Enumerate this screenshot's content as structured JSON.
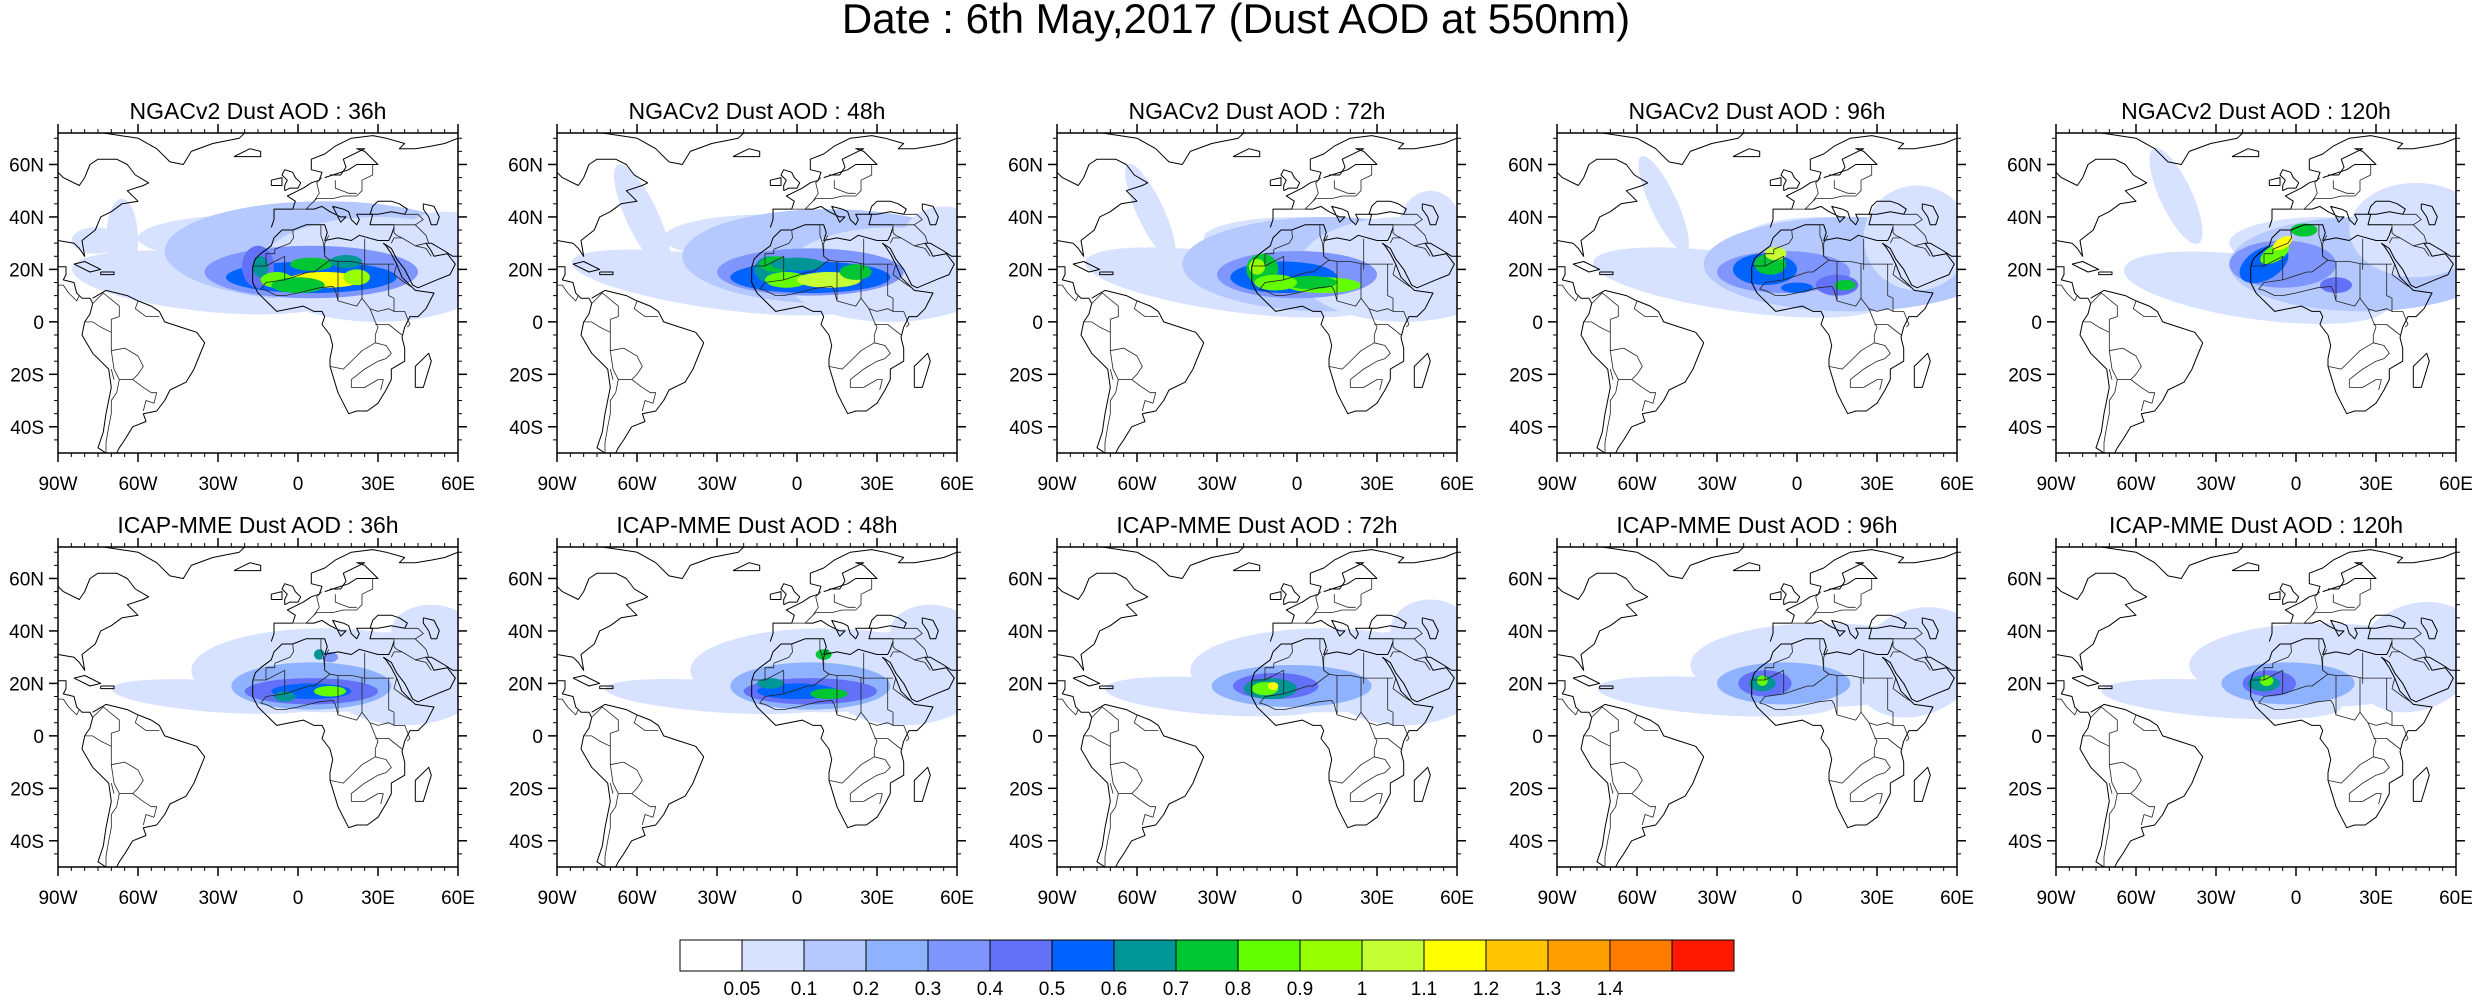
{
  "title": "Date : 6th May,2017 (Dust AOD at 550nm)",
  "panels": [
    {
      "title": "NGACv2 Dust AOD : 36h",
      "model": "NGAC",
      "lead": 36
    },
    {
      "title": "NGACv2 Dust AOD : 48h",
      "model": "NGAC",
      "lead": 48
    },
    {
      "title": "NGACv2 Dust AOD : 72h",
      "model": "NGAC",
      "lead": 72
    },
    {
      "title": "NGACv2 Dust AOD : 96h",
      "model": "NGAC",
      "lead": 96
    },
    {
      "title": "NGACv2 Dust AOD : 120h",
      "model": "NGAC",
      "lead": 120
    },
    {
      "title": "ICAP-MME Dust AOD : 36h",
      "model": "ICAP",
      "lead": 36
    },
    {
      "title": "ICAP-MME Dust AOD : 48h",
      "model": "ICAP",
      "lead": 48
    },
    {
      "title": "ICAP-MME Dust AOD : 72h",
      "model": "ICAP",
      "lead": 72
    },
    {
      "title": "ICAP-MME Dust AOD : 96h",
      "model": "ICAP",
      "lead": 96
    },
    {
      "title": "ICAP-MME Dust AOD : 120h",
      "model": "ICAP",
      "lead": 120
    }
  ],
  "lon_ticks": [
    "90W",
    "60W",
    "30W",
    "0",
    "30E",
    "60E"
  ],
  "lat_ticks": [
    "60N",
    "40N",
    "20N",
    "0",
    "20S",
    "40S"
  ],
  "colorbar": {
    "labels": [
      "0.05",
      "0.1",
      "0.2",
      "0.3",
      "0.4",
      "0.5",
      "0.6",
      "0.7",
      "0.8",
      "0.9",
      "1",
      "1.1",
      "1.2",
      "1.3",
      "1.4"
    ],
    "colors": [
      "#ffffff",
      "#d6e2ff",
      "#b5c9ff",
      "#8fb2ff",
      "#7f96ff",
      "#6370f8",
      "#0063ff",
      "#009696",
      "#00c633",
      "#63ff00",
      "#96ff00",
      "#c6ff33",
      "#ffff00",
      "#ffc600",
      "#ffa000",
      "#ff7c00",
      "#ff1900"
    ]
  }
}
